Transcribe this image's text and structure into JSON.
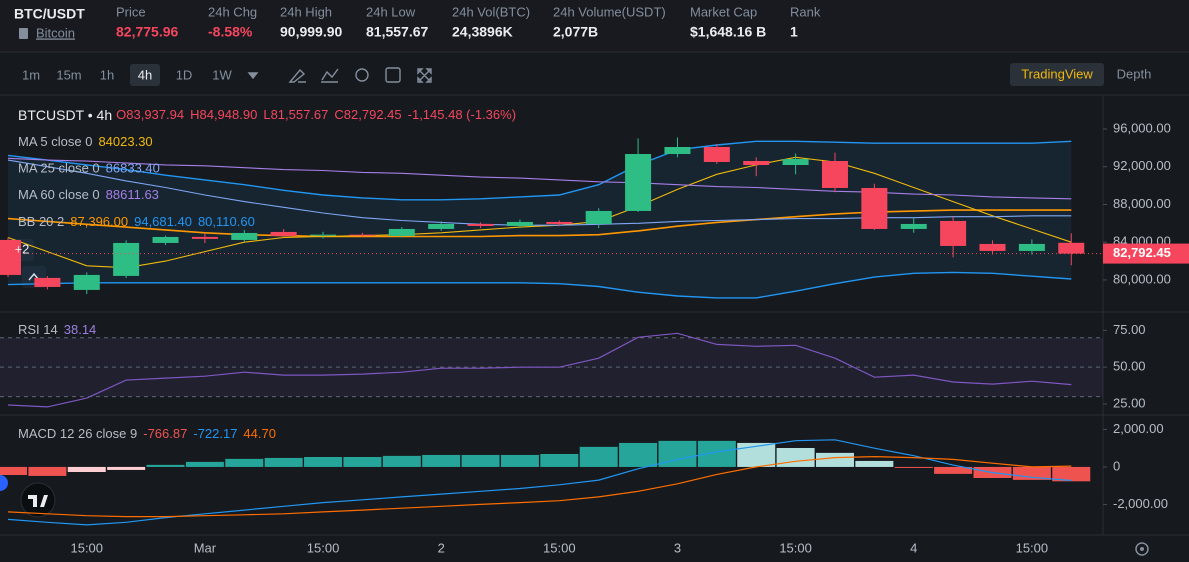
{
  "header": {
    "symbol": "BTC/USDT",
    "name": "Bitcoin",
    "stats": [
      {
        "label": "Price",
        "value": "82,775.96",
        "color": "#f6465d"
      },
      {
        "label": "24h Chg",
        "value": "-8.58%",
        "color": "#f6465d"
      },
      {
        "label": "24h High",
        "value": "90,999.90",
        "color": "#eaecef"
      },
      {
        "label": "24h Low",
        "value": "81,557.67",
        "color": "#eaecef"
      },
      {
        "label": "24h Vol(BTC)",
        "value": "24,3896K",
        "color": "#eaecef"
      },
      {
        "label": "24h Volume(USDT)",
        "value": "2,077B",
        "color": "#eaecef"
      },
      {
        "label": "Market Cap",
        "value": "$1,648.16 B",
        "color": "#eaecef"
      },
      {
        "label": "Rank",
        "value": "1",
        "color": "#eaecef"
      }
    ]
  },
  "toolbar": {
    "intervals": [
      "1m",
      "15m",
      "1h",
      "4h",
      "1D",
      "1W"
    ],
    "active": 3,
    "views": [
      "TradingView",
      "Depth"
    ],
    "active_view": 0
  },
  "chart_data": [
    {
      "type": "candlestick",
      "title": "BTCUSDT • 4h",
      "ohlc": [
        {
          "label": "O",
          "value": "83,937.94"
        },
        {
          "label": "H",
          "value": "84,948.90"
        },
        {
          "label": "L",
          "value": "81,557.67"
        },
        {
          "label": "C",
          "value": "82,792.45"
        }
      ],
      "change": "-1,145.48 (-1.36%)",
      "hidden_indicators": "+2",
      "categories": [
        null,
        null,
        "15:00",
        null,
        null,
        "Mar",
        null,
        null,
        "15:00",
        null,
        null,
        "2",
        null,
        null,
        "15:00",
        null,
        null,
        "3",
        null,
        null,
        "15:00",
        null,
        null,
        "4",
        null,
        null,
        "15:00",
        null
      ],
      "open": [
        84238,
        80212,
        78940,
        80424,
        83920,
        84560,
        84238,
        85086,
        84700,
        84800,
        84662,
        85404,
        85934,
        85722,
        86146,
        85934,
        87311,
        93350,
        94093,
        92609,
        92185,
        92609,
        89748,
        85404,
        86252,
        83815,
        83073,
        83937.94
      ],
      "high": [
        84500,
        80400,
        80800,
        84200,
        84700,
        84900,
        85300,
        85400,
        85100,
        85000,
        85600,
        86200,
        86100,
        86400,
        86300,
        87600,
        95000,
        95100,
        94400,
        93000,
        93400,
        93500,
        90200,
        86600,
        86700,
        84200,
        84300,
        84948.9
      ],
      "low": [
        80300,
        79000,
        78500,
        80200,
        83700,
        83900,
        84000,
        84500,
        84400,
        84500,
        84500,
        85200,
        85500,
        85500,
        85700,
        85500,
        87200,
        93000,
        92300,
        91000,
        91200,
        89300,
        85300,
        85000,
        82400,
        82700,
        82700,
        81557.67
      ],
      "close": [
        80530,
        79258,
        80530,
        83920,
        84556,
        84350,
        84980,
        84662,
        84800,
        84700,
        85404,
        85934,
        85722,
        86146,
        85934,
        87311,
        93350,
        94093,
        92503,
        92185,
        92821,
        89748,
        85404,
        85934,
        83603,
        83073,
        83815,
        82792.45
      ],
      "up_color": "#2ebd85",
      "down_color": "#f6465d",
      "series": [
        {
          "name": "MA 5 close 0",
          "legend_value": "84023.30",
          "color": "#f0b90b",
          "values": [
            84500,
            83000,
            81500,
            81300,
            82000,
            83000,
            84000,
            84500,
            84600,
            84700,
            84800,
            85000,
            85300,
            85600,
            85800,
            86200,
            87800,
            89600,
            91200,
            92200,
            93000,
            92500,
            91300,
            89800,
            88300,
            86800,
            85400,
            84000
          ]
        },
        {
          "name": "MA 25 close 0",
          "legend_value": "86833.40",
          "color": "#7fa6f5",
          "values": [
            92700,
            92000,
            91300,
            90500,
            89800,
            89000,
            88300,
            87700,
            87100,
            86600,
            86300,
            86100,
            85900,
            85800,
            85800,
            85900,
            86000,
            86200,
            86300,
            86400,
            86500,
            86500,
            86600,
            86600,
            86700,
            86700,
            86800,
            86800
          ]
        },
        {
          "name": "MA 60 close 0",
          "legend_value": "88611.63",
          "color": "#a77ee8",
          "values": [
            92900,
            92700,
            92600,
            92400,
            92200,
            92100,
            91900,
            91700,
            91600,
            91400,
            91300,
            91100,
            90900,
            90800,
            90600,
            90400,
            90300,
            90100,
            89900,
            89800,
            89600,
            89400,
            89300,
            89100,
            89000,
            88800,
            88700,
            88600
          ]
        }
      ],
      "bands": {
        "name": "BB 20 2",
        "basis": {
          "legend_value": "87,396.00",
          "color": "#ff9800",
          "values": [
            86500,
            86200,
            85900,
            85600,
            85300,
            85000,
            84800,
            84700,
            84600,
            84600,
            84600,
            84600,
            84600,
            84700,
            84700,
            84800,
            85200,
            85700,
            86100,
            86400,
            86700,
            87000,
            87200,
            87300,
            87400,
            87400,
            87400,
            87400
          ]
        },
        "upper": {
          "legend_value": "94,681.40",
          "color": "#2196f3",
          "values": [
            93200,
            92700,
            92200,
            91700,
            91100,
            90600,
            90100,
            89500,
            89000,
            88700,
            88500,
            88500,
            88600,
            88800,
            89000,
            90100,
            92200,
            93800,
            94300,
            94700,
            94700,
            94600,
            94500,
            94500,
            94500,
            94500,
            94500,
            94700
          ]
        },
        "lower": {
          "legend_value": "80,110.60",
          "color": "#2196f3",
          "values": [
            79500,
            79600,
            79700,
            79700,
            79700,
            79700,
            79700,
            79700,
            79700,
            79700,
            79700,
            79700,
            79700,
            79700,
            79600,
            79300,
            78700,
            78300,
            78100,
            78100,
            78800,
            79600,
            80300,
            80700,
            80800,
            80700,
            80400,
            80100
          ]
        }
      },
      "last_price": {
        "value": 82792.45,
        "label": "82,792.45"
      },
      "ylim": [
        76600,
        99500
      ],
      "yticks": [
        {
          "value": 96000,
          "label": "96,000.00"
        },
        {
          "value": 92000,
          "label": "92,000.00"
        },
        {
          "value": 88000,
          "label": "88,000.00"
        },
        {
          "value": 84000,
          "label": "84,000.00"
        },
        {
          "value": 80000,
          "label": "80,000.00"
        }
      ]
    },
    {
      "type": "line",
      "title": "RSI 14",
      "series": [
        {
          "legend_value": "38.14",
          "color": "#7e57c2",
          "legend_color": "#9b7fe0",
          "values": [
            24.3,
            23,
            29,
            41.2,
            42.6,
            43.9,
            46.6,
            44.6,
            44.6,
            45.3,
            46.6,
            49.3,
            49.3,
            50,
            50,
            56.1,
            70.3,
            73,
            65.5,
            64.2,
            64.9,
            56.1,
            43.2,
            44.6,
            39.9,
            38.5,
            40.5,
            38.14
          ]
        }
      ],
      "levels": [
        30,
        50,
        70
      ],
      "ylim": [
        17.5,
        87.5
      ],
      "yticks": [
        {
          "value": 75,
          "label": "75.00"
        },
        {
          "value": 50,
          "label": "50.00"
        },
        {
          "value": 25,
          "label": "25.00"
        }
      ]
    },
    {
      "type": "bar",
      "title": "MACD 12 26 close 9",
      "legend_value": "-766.87",
      "values": [
        -430,
        -480,
        -270,
        -160,
        110,
        270,
        430,
        480,
        530,
        530,
        590,
        640,
        640,
        640,
        690,
        1070,
        1280,
        1390,
        1390,
        1280,
        1010,
        750,
        320,
        -20,
        -370,
        -590,
        -690,
        -766.87
      ],
      "up_color": "#26a69a",
      "up_fade_color": "#b2dfdb",
      "down_color": "#ef5350",
      "down_fade_color": "#ffcdd2",
      "series": [
        {
          "legend_value": "-722.17",
          "color": "#2196f3",
          "values": [
            -2800,
            -2950,
            -3090,
            -2950,
            -2700,
            -2500,
            -2300,
            -2100,
            -1900,
            -1750,
            -1600,
            -1450,
            -1300,
            -1150,
            -950,
            -700,
            -100,
            400,
            800,
            1100,
            1400,
            1450,
            1000,
            600,
            100,
            -300,
            -550,
            -722.17
          ]
        },
        {
          "legend_value": "44.70",
          "color": "#ff6d00",
          "values": [
            -2400,
            -2500,
            -2600,
            -2650,
            -2650,
            -2600,
            -2550,
            -2500,
            -2400,
            -2300,
            -2200,
            -2100,
            -2000,
            -1900,
            -1800,
            -1600,
            -1300,
            -900,
            -400,
            0,
            300,
            500,
            550,
            500,
            400,
            200,
            0,
            44.7
          ]
        }
      ],
      "ylim": [
        -3630,
        2770
      ],
      "yticks": [
        {
          "value": 2000,
          "label": "2,000.00"
        },
        0,
        {
          "value": -2000,
          "label": "-2,000.00"
        }
      ]
    }
  ]
}
